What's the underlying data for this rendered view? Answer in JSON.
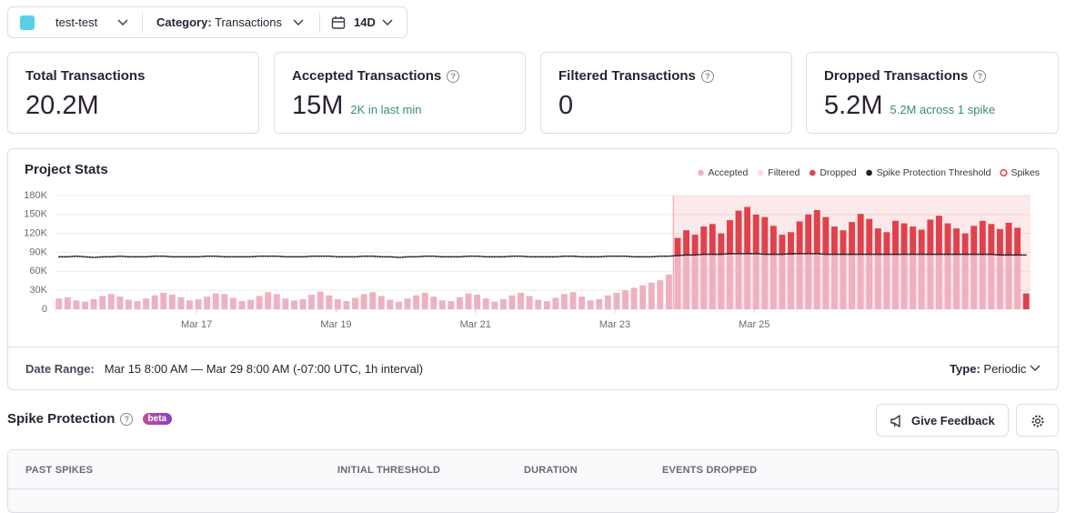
{
  "header": {
    "project": "test-test",
    "category_label": "Category:",
    "category_value": "Transactions",
    "period": "14D"
  },
  "cards": [
    {
      "title": "Total Transactions",
      "value": "20.2M"
    },
    {
      "title": "Accepted Transactions",
      "value": "15M",
      "sub": "2K in last min"
    },
    {
      "title": "Filtered Transactions",
      "value": "0"
    },
    {
      "title": "Dropped Transactions",
      "value": "5.2M",
      "sub": "5.2M across 1 spike"
    }
  ],
  "chart_data": {
    "type": "bar",
    "title": "Project Stats",
    "xlim": [
      0,
      112
    ],
    "xticks": [
      {
        "value": 16.3,
        "label": "Mar 17"
      },
      {
        "value": 32.3,
        "label": "Mar 19"
      },
      {
        "value": 48.3,
        "label": "Mar 21"
      },
      {
        "value": 64.3,
        "label": "Mar 23"
      },
      {
        "value": 80.3,
        "label": "Mar 25"
      }
    ],
    "ylim": [
      0,
      180000
    ],
    "yticks": [
      0,
      {
        "value": 30000,
        "label": "30K"
      },
      {
        "value": 60000,
        "label": "60K"
      },
      {
        "value": 90000,
        "label": "90K"
      },
      {
        "value": 120000,
        "label": "120K"
      },
      {
        "value": 150000,
        "label": "150K"
      },
      {
        "value": 180000,
        "label": "180K"
      }
    ],
    "grid": true,
    "legend": "top-right",
    "series": [
      {
        "name": "Accepted",
        "color": "#efb0bf",
        "type": "bar",
        "values": [
          17000,
          19000,
          14000,
          12000,
          16000,
          21000,
          24000,
          20000,
          15000,
          13000,
          17000,
          22000,
          26000,
          23000,
          19000,
          14000,
          16000,
          20000,
          25000,
          24000,
          18000,
          13000,
          15000,
          21000,
          27000,
          24000,
          17000,
          14000,
          16000,
          23000,
          28000,
          22000,
          16000,
          13000,
          18000,
          24000,
          27000,
          21000,
          15000,
          12000,
          17000,
          22000,
          26000,
          20000,
          14000,
          13000,
          19000,
          25000,
          23000,
          17000,
          12000,
          16000,
          22000,
          26000,
          21000,
          15000,
          13000,
          18000,
          24000,
          27000,
          20000,
          14000,
          16000,
          22000,
          26000,
          30000,
          34000,
          38000,
          42000,
          46000,
          55000,
          84000,
          85000,
          86000,
          86000,
          87000,
          86000,
          87000,
          88000,
          88000,
          87000,
          87000,
          86000,
          86000,
          86000,
          87000,
          88000,
          88000,
          87000,
          87000,
          86000,
          86000,
          87000,
          87000,
          86000,
          86000,
          86000,
          87000,
          87000,
          87000,
          86000,
          86000,
          86000,
          86000,
          86000,
          86000,
          86000,
          86000,
          85000,
          85000,
          85000,
          0
        ]
      },
      {
        "name": "Filtered",
        "color": "#f9dde3",
        "type": "bar"
      },
      {
        "name": "Dropped",
        "color": "#e0424c",
        "type": "bar",
        "values": [
          0,
          0,
          0,
          0,
          0,
          0,
          0,
          0,
          0,
          0,
          0,
          0,
          0,
          0,
          0,
          0,
          0,
          0,
          0,
          0,
          0,
          0,
          0,
          0,
          0,
          0,
          0,
          0,
          0,
          0,
          0,
          0,
          0,
          0,
          0,
          0,
          0,
          0,
          0,
          0,
          0,
          0,
          0,
          0,
          0,
          0,
          0,
          0,
          0,
          0,
          0,
          0,
          0,
          0,
          0,
          0,
          0,
          0,
          0,
          0,
          0,
          0,
          0,
          0,
          0,
          0,
          0,
          0,
          0,
          0,
          0,
          29000,
          40000,
          32000,
          45000,
          48000,
          34000,
          54000,
          68000,
          74000,
          63000,
          59000,
          46000,
          32000,
          36000,
          52000,
          62000,
          69000,
          59000,
          44000,
          39000,
          52000,
          64000,
          56000,
          42000,
          36000,
          54000,
          49000,
          44000,
          39000,
          56000,
          62000,
          50000,
          42000,
          34000,
          46000,
          54000,
          49000,
          42000,
          52000,
          44000,
          25000
        ]
      },
      {
        "name": "Spike Protection Threshold",
        "color": "#222222",
        "type": "line",
        "values": [
          83000,
          83000,
          84000,
          83000,
          82000,
          83000,
          83000,
          84000,
          83000,
          83000,
          83000,
          84000,
          84000,
          83000,
          83000,
          83000,
          83000,
          84000,
          84000,
          83000,
          83000,
          83000,
          83000,
          84000,
          84000,
          84000,
          83000,
          83000,
          83000,
          84000,
          84000,
          84000,
          83000,
          83000,
          83000,
          84000,
          84000,
          83000,
          83000,
          82000,
          83000,
          83000,
          84000,
          84000,
          83000,
          83000,
          83000,
          84000,
          84000,
          83000,
          83000,
          83000,
          84000,
          84000,
          83000,
          83000,
          83000,
          83000,
          84000,
          84000,
          83000,
          83000,
          83000,
          84000,
          84000,
          84000,
          83000,
          83000,
          83000,
          84000,
          84000,
          85000,
          86000,
          86000,
          87000,
          87000,
          87000,
          88000,
          88000,
          88000,
          88000,
          87000,
          87000,
          87000,
          88000,
          88000,
          88000,
          88000,
          87000,
          87000,
          87000,
          87000,
          87000,
          87000,
          87000,
          87000,
          87000,
          87000,
          87000,
          87000,
          87000,
          87000,
          87000,
          87000,
          87000,
          87000,
          87000,
          87000,
          86000,
          86000,
          86000,
          86000
        ]
      },
      {
        "name": "Spikes",
        "color": "#e5484d",
        "type": "region"
      }
    ]
  },
  "chart_footer": {
    "date_label": "Date Range:",
    "date_value": "Mar 15 8:00 AM — Mar 29 8:00 AM (-07:00 UTC, 1h interval)",
    "type_label": "Type:",
    "type_value": "Periodic"
  },
  "spike_protection": {
    "title": "Spike Protection",
    "badge": "beta",
    "feedback_button": "Give Feedback",
    "table": {
      "headers": [
        "PAST SPIKES",
        "INITIAL THRESHOLD",
        "DURATION",
        "EVENTS DROPPED"
      ]
    }
  }
}
